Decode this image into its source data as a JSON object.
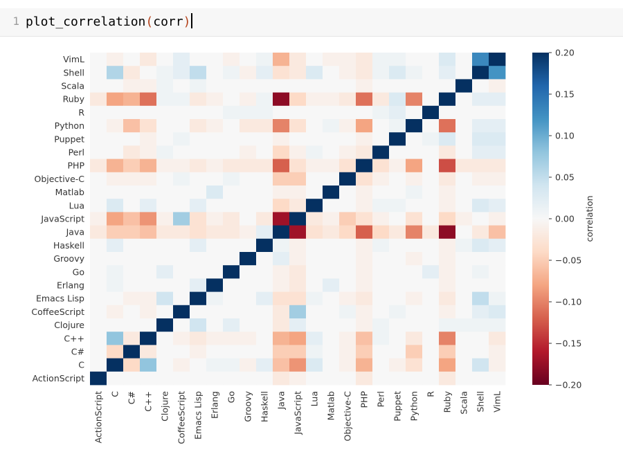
{
  "editor": {
    "line_number": "1",
    "code_fn": "plot_correlation",
    "code_open": "(",
    "code_arg": "corr",
    "code_close": ")"
  },
  "chart_data": {
    "type": "heatmap",
    "title": "",
    "x_labels": [
      "ActionScript",
      "C",
      "C#",
      "C++",
      "Clojure",
      "CoffeeScript",
      "Emacs Lisp",
      "Erlang",
      "Go",
      "Groovy",
      "Haskell",
      "Java",
      "JavaScript",
      "Lua",
      "Matlab",
      "Objective-C",
      "PHP",
      "Perl",
      "Puppet",
      "Python",
      "R",
      "Ruby",
      "Scala",
      "Shell",
      "VimL"
    ],
    "y_labels": [
      "VimL",
      "Shell",
      "Scala",
      "Ruby",
      "R",
      "Python",
      "Puppet",
      "Perl",
      "PHP",
      "Objective-C",
      "Matlab",
      "Lua",
      "JavaScript",
      "Java",
      "Haskell",
      "Groovy",
      "Go",
      "Erlang",
      "Emacs Lisp",
      "CoffeeScript",
      "Clojure",
      "C++",
      "C#",
      "C",
      "ActionScript"
    ],
    "values": [
      [
        0.0,
        -0.01,
        0.0,
        -0.02,
        0.0,
        0.02,
        0.0,
        0.0,
        -0.01,
        0.0,
        0.01,
        -0.07,
        -0.02,
        0.0,
        -0.01,
        -0.01,
        -0.02,
        0.01,
        0.01,
        0.0,
        0.0,
        0.03,
        0.0,
        0.13,
        0.2
      ],
      [
        0.0,
        0.06,
        -0.02,
        0.0,
        0.01,
        0.02,
        0.05,
        0.0,
        0.01,
        -0.01,
        0.02,
        -0.03,
        -0.02,
        0.03,
        0.0,
        -0.01,
        -0.02,
        0.01,
        0.03,
        0.01,
        0.0,
        0.02,
        0.0,
        0.2,
        0.12
      ],
      [
        0.0,
        0.0,
        -0.01,
        -0.01,
        0.01,
        0.0,
        0.01,
        0.0,
        0.0,
        0.0,
        0.0,
        0.0,
        0.0,
        0.0,
        0.0,
        0.0,
        -0.01,
        0.0,
        0.0,
        0.0,
        0.0,
        0.0,
        0.2,
        0.0,
        -0.01
      ],
      [
        -0.02,
        -0.08,
        -0.07,
        -0.11,
        0.01,
        0.01,
        -0.02,
        -0.01,
        0.0,
        -0.01,
        0.01,
        -0.18,
        -0.04,
        -0.01,
        -0.01,
        -0.02,
        -0.11,
        -0.02,
        0.03,
        -0.1,
        0.0,
        0.2,
        0.0,
        0.02,
        0.02
      ],
      [
        0.0,
        0.0,
        0.0,
        0.0,
        0.0,
        0.0,
        0.0,
        0.0,
        0.01,
        0.01,
        0.01,
        0.0,
        0.0,
        0.0,
        0.0,
        0.0,
        0.0,
        0.01,
        0.02,
        0.0,
        0.2,
        0.0,
        0.0,
        0.0,
        0.0
      ],
      [
        0.0,
        -0.01,
        -0.06,
        -0.03,
        0.0,
        0.0,
        -0.02,
        -0.01,
        0.0,
        -0.02,
        -0.02,
        -0.1,
        -0.03,
        0.0,
        0.01,
        -0.01,
        -0.08,
        0.0,
        0.01,
        0.2,
        0.0,
        -0.11,
        0.0,
        0.02,
        0.02
      ],
      [
        0.0,
        0.0,
        0.0,
        -0.01,
        0.0,
        0.01,
        0.0,
        0.0,
        0.0,
        0.0,
        0.0,
        -0.01,
        0.0,
        0.0,
        0.0,
        0.0,
        -0.01,
        0.0,
        0.2,
        0.0,
        0.01,
        0.03,
        0.0,
        0.03,
        0.03
      ],
      [
        0.0,
        0.0,
        -0.02,
        -0.01,
        0.01,
        0.0,
        0.0,
        0.0,
        0.0,
        -0.01,
        0.0,
        -0.04,
        -0.01,
        0.01,
        0.0,
        -0.01,
        -0.02,
        0.2,
        0.0,
        0.0,
        0.0,
        -0.02,
        0.0,
        0.02,
        0.02
      ],
      [
        -0.02,
        -0.07,
        -0.05,
        -0.07,
        -0.01,
        -0.01,
        -0.02,
        -0.01,
        -0.02,
        -0.02,
        -0.02,
        -0.12,
        -0.03,
        -0.01,
        -0.01,
        -0.03,
        0.2,
        -0.03,
        -0.01,
        -0.08,
        0.0,
        -0.13,
        -0.02,
        -0.02,
        -0.02
      ],
      [
        0.0,
        -0.01,
        -0.01,
        -0.01,
        0.0,
        0.01,
        0.0,
        0.0,
        0.01,
        0.0,
        0.0,
        -0.05,
        -0.05,
        0.0,
        0.0,
        0.2,
        -0.03,
        -0.01,
        0.0,
        -0.01,
        0.0,
        -0.02,
        0.0,
        -0.01,
        -0.01
      ],
      [
        0.0,
        0.0,
        0.0,
        0.0,
        0.0,
        0.0,
        0.0,
        0.03,
        0.0,
        0.0,
        0.0,
        -0.01,
        -0.01,
        0.0,
        0.2,
        0.0,
        -0.01,
        0.0,
        0.0,
        0.01,
        0.0,
        -0.01,
        0.0,
        0.0,
        0.0
      ],
      [
        0.0,
        0.03,
        0.0,
        0.02,
        0.0,
        0.0,
        0.02,
        0.0,
        0.0,
        0.0,
        0.0,
        -0.04,
        -0.02,
        0.2,
        0.0,
        0.0,
        -0.01,
        0.01,
        0.01,
        0.0,
        0.0,
        -0.01,
        0.0,
        0.03,
        0.02
      ],
      [
        -0.01,
        -0.08,
        -0.06,
        -0.09,
        -0.01,
        0.07,
        -0.03,
        -0.01,
        -0.02,
        0.0,
        -0.02,
        -0.17,
        0.2,
        -0.02,
        -0.01,
        -0.05,
        -0.03,
        -0.01,
        0.0,
        -0.03,
        0.0,
        -0.04,
        -0.01,
        0.0,
        -0.01
      ],
      [
        -0.02,
        -0.05,
        -0.05,
        -0.06,
        -0.02,
        -0.02,
        -0.03,
        -0.02,
        -0.02,
        -0.01,
        0.02,
        0.2,
        -0.17,
        -0.03,
        -0.02,
        -0.04,
        -0.12,
        -0.04,
        -0.02,
        -0.1,
        -0.02,
        -0.18,
        0.0,
        -0.02,
        -0.06
      ],
      [
        0.0,
        0.02,
        0.0,
        0.0,
        0.0,
        0.0,
        0.02,
        0.0,
        0.0,
        0.0,
        0.2,
        0.01,
        -0.01,
        0.0,
        0.0,
        0.0,
        -0.01,
        0.01,
        0.0,
        0.0,
        0.0,
        -0.01,
        0.01,
        0.03,
        0.02
      ],
      [
        0.0,
        0.0,
        0.0,
        0.0,
        0.0,
        0.0,
        0.0,
        0.0,
        0.0,
        0.2,
        0.0,
        0.02,
        -0.01,
        0.0,
        0.0,
        0.0,
        -0.01,
        0.0,
        0.0,
        -0.01,
        0.0,
        -0.01,
        0.0,
        0.0,
        0.0
      ],
      [
        0.0,
        0.01,
        0.0,
        0.0,
        0.02,
        0.0,
        0.0,
        0.0,
        0.2,
        0.0,
        0.0,
        -0.01,
        -0.02,
        0.0,
        0.0,
        0.0,
        -0.01,
        0.0,
        0.0,
        0.0,
        0.02,
        -0.01,
        0.0,
        0.01,
        0.0
      ],
      [
        0.0,
        0.01,
        0.0,
        0.0,
        0.0,
        0.0,
        0.02,
        0.2,
        0.0,
        0.0,
        0.0,
        -0.01,
        -0.02,
        0.0,
        0.02,
        0.0,
        -0.01,
        0.0,
        0.0,
        0.0,
        0.0,
        -0.01,
        0.0,
        0.0,
        0.0
      ],
      [
        0.0,
        0.0,
        -0.01,
        -0.01,
        0.04,
        0.0,
        0.2,
        0.01,
        0.0,
        0.0,
        0.02,
        -0.03,
        -0.03,
        0.01,
        0.0,
        -0.01,
        -0.02,
        0.0,
        0.0,
        -0.01,
        0.0,
        -0.02,
        0.0,
        0.05,
        0.01
      ],
      [
        0.0,
        -0.01,
        0.0,
        -0.01,
        0.0,
        0.2,
        0.0,
        0.0,
        0.0,
        0.0,
        0.0,
        -0.02,
        0.07,
        0.0,
        0.0,
        0.01,
        -0.01,
        0.0,
        0.01,
        0.0,
        0.0,
        -0.01,
        0.0,
        0.02,
        0.03
      ],
      [
        0.0,
        0.0,
        0.0,
        0.0,
        0.2,
        0.0,
        0.04,
        0.0,
        0.02,
        0.0,
        0.0,
        -0.02,
        0.02,
        0.0,
        0.0,
        0.0,
        -0.01,
        0.01,
        0.0,
        0.0,
        0.0,
        0.01,
        0.01,
        0.01,
        0.01
      ],
      [
        0.0,
        0.08,
        -0.02,
        0.2,
        0.0,
        -0.01,
        -0.02,
        -0.01,
        -0.01,
        -0.01,
        0.0,
        -0.07,
        -0.08,
        0.02,
        0.0,
        -0.01,
        -0.06,
        0.01,
        0.0,
        -0.02,
        0.0,
        -0.1,
        0.0,
        0.0,
        -0.02
      ],
      [
        0.0,
        -0.04,
        0.2,
        -0.02,
        0.0,
        0.0,
        -0.01,
        0.0,
        0.0,
        0.0,
        0.0,
        -0.05,
        -0.05,
        0.01,
        0.0,
        -0.01,
        -0.05,
        0.0,
        0.0,
        -0.05,
        0.0,
        -0.05,
        0.0,
        0.0,
        -0.01
      ],
      [
        0.0,
        0.2,
        -0.04,
        0.08,
        0.0,
        -0.01,
        0.0,
        0.01,
        0.01,
        -0.01,
        0.02,
        -0.06,
        -0.09,
        0.03,
        0.0,
        -0.01,
        -0.07,
        0.0,
        -0.01,
        -0.03,
        0.0,
        -0.08,
        0.0,
        0.04,
        -0.01
      ],
      [
        0.2,
        0.0,
        0.0,
        0.0,
        0.0,
        0.0,
        0.0,
        0.0,
        0.0,
        0.0,
        0.0,
        -0.02,
        -0.01,
        0.0,
        0.0,
        0.0,
        -0.02,
        0.0,
        0.0,
        0.0,
        0.0,
        -0.02,
        0.0,
        0.0,
        0.0
      ]
    ],
    "colorbar": {
      "label": "correlation",
      "range": [
        -0.2,
        0.2
      ],
      "ticks": [
        "0.20",
        "0.15",
        "0.10",
        "0.05",
        "0.00",
        "−0.05",
        "−0.10",
        "−0.15",
        "−0.20"
      ],
      "colormap": "RdBu",
      "low_color": "#67001f",
      "mid_color": "#f7f7f7",
      "high_color": "#053061"
    }
  }
}
